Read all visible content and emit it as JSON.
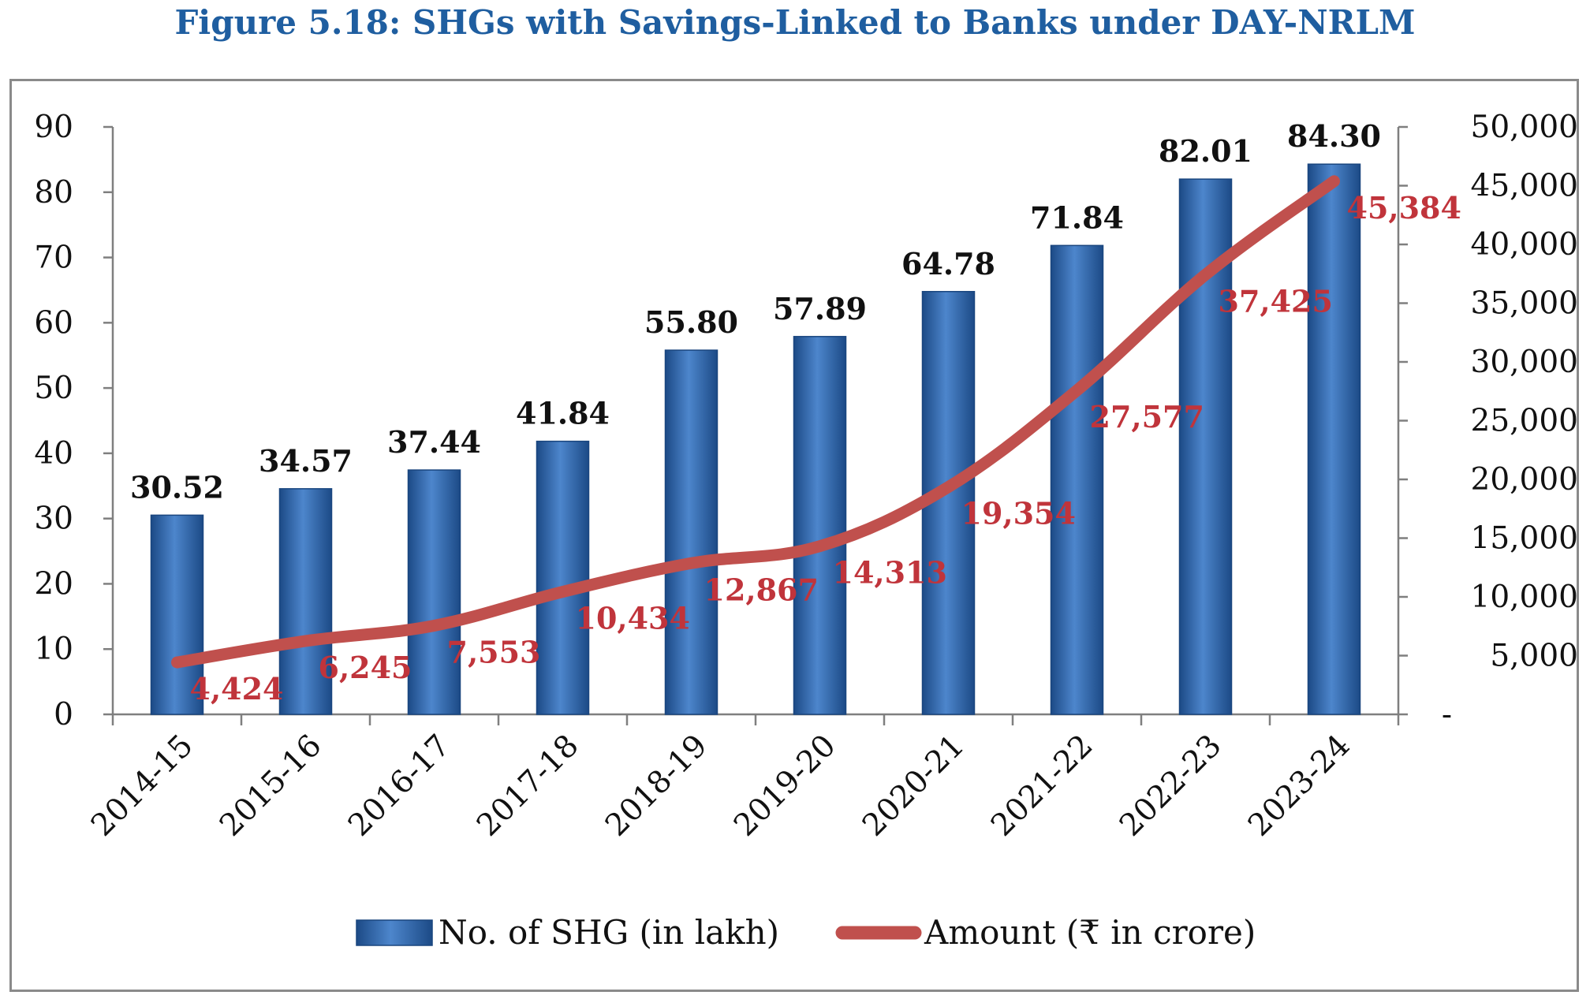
{
  "title": "Figure 5.18: SHGs with Savings-Linked to Banks under DAY-NRLM",
  "chart_data": {
    "type": "bar",
    "categories": [
      "2014-15",
      "2015-16",
      "2016-17",
      "2017-18",
      "2018-19",
      "2019-20",
      "2020-21",
      "2021-22",
      "2022-23",
      "2023-24"
    ],
    "series": [
      {
        "name": "No. of SHG (in lakh)",
        "type": "bar",
        "axis": "left",
        "values": [
          30.52,
          34.57,
          37.44,
          41.84,
          55.8,
          57.89,
          64.78,
          71.84,
          82.01,
          84.3
        ],
        "labels": [
          "30.52",
          "34.57",
          "37.44",
          "41.84",
          "55.80",
          "57.89",
          "64.78",
          "71.84",
          "82.01",
          "84.30"
        ],
        "color": "#2e66ac"
      },
      {
        "name": "Amount (₹ in crore)",
        "type": "line",
        "axis": "right",
        "values": [
          4424,
          6245,
          7553,
          10434,
          12867,
          14313,
          19354,
          27577,
          37425,
          45384
        ],
        "labels": [
          "4,424",
          "6,245",
          "7,553",
          "10,434",
          "12,867",
          "14,313",
          "19,354",
          "27,577",
          "37,425",
          "45,384"
        ],
        "color": "#c0504d"
      }
    ],
    "y_left": {
      "ylim": [
        0,
        90
      ],
      "ticks": [
        "0",
        "10",
        "20",
        "30",
        "40",
        "50",
        "60",
        "70",
        "80",
        "90"
      ],
      "tick_values": [
        0,
        10,
        20,
        30,
        40,
        50,
        60,
        70,
        80,
        90
      ]
    },
    "y_right": {
      "ylim": [
        0,
        50000
      ],
      "ticks": [
        "-",
        "5,000",
        "10,000",
        "15,000",
        "20,000",
        "25,000",
        "30,000",
        "35,000",
        "40,000",
        "45,000",
        "50,000"
      ],
      "tick_values": [
        0,
        5000,
        10000,
        15000,
        20000,
        25000,
        30000,
        35000,
        40000,
        45000,
        50000
      ]
    },
    "grid": false,
    "legend": "bottom"
  }
}
